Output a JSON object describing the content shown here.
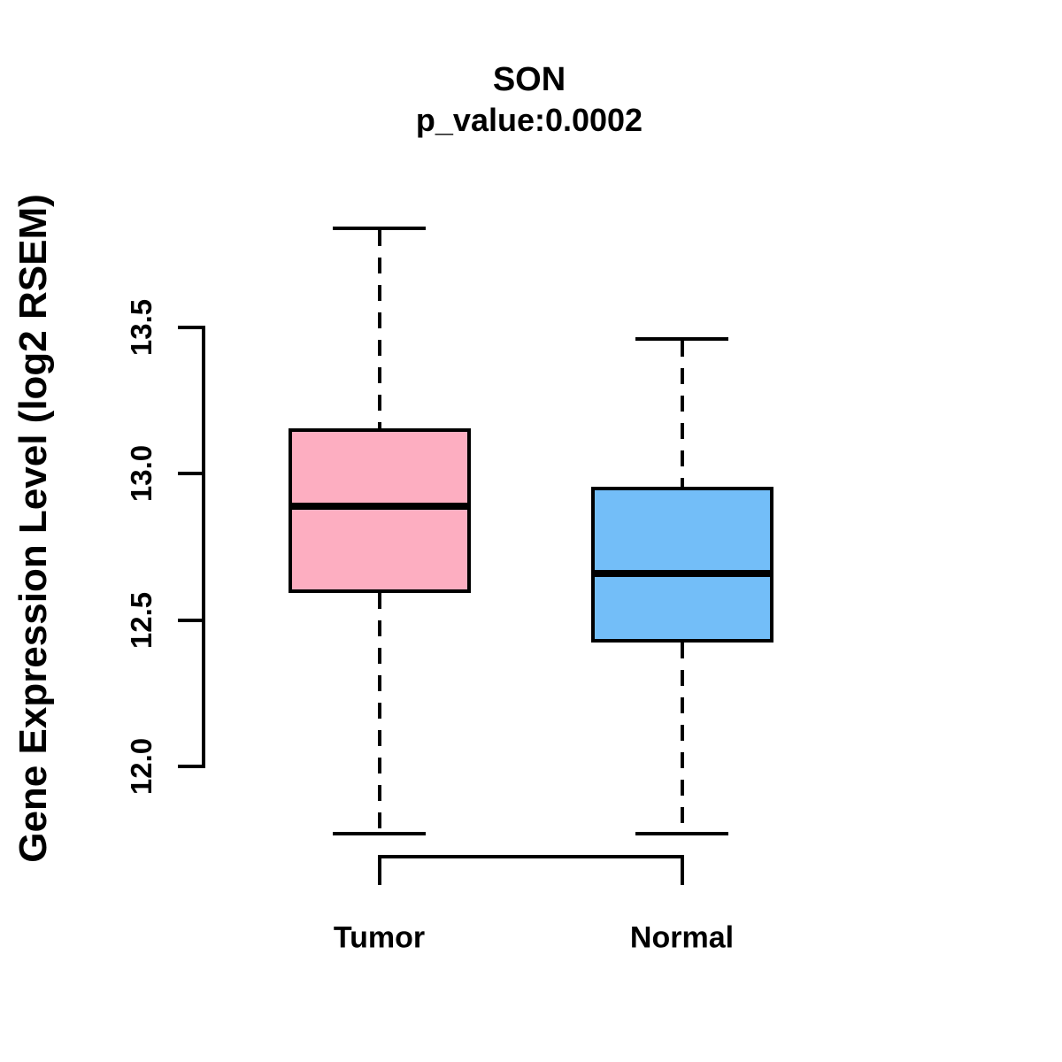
{
  "chart_data": {
    "type": "boxplot",
    "title": "SON",
    "subtitle": "p_value:0.0002",
    "ylabel": "Gene Expression Level (log2 RSEM)",
    "xlabel": "",
    "categories": [
      "Tumor",
      "Normal"
    ],
    "yticks": [
      "12.0",
      "12.5",
      "13.0",
      "13.5"
    ],
    "ytick_values": [
      12.0,
      12.5,
      13.0,
      13.5
    ],
    "ylim": [
      11.6,
      14.0
    ],
    "grid": false,
    "legend": "none",
    "background_color": "#ffffff",
    "line_color": "#000000",
    "series": [
      {
        "name": "Tumor",
        "color": "#FDAEC1",
        "lower_whisker": 11.77,
        "q1": 12.6,
        "median": 12.89,
        "q3": 13.15,
        "upper_whisker": 13.84
      },
      {
        "name": "Normal",
        "color": "#73BEF8",
        "lower_whisker": 11.77,
        "q1": 12.43,
        "median": 12.66,
        "q3": 12.95,
        "upper_whisker": 13.46
      }
    ]
  }
}
